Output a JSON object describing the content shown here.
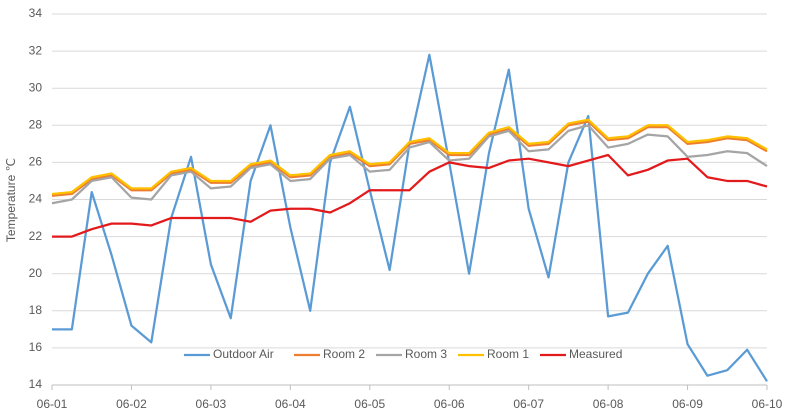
{
  "chart_data": {
    "type": "line",
    "y_label": "Temperature ℃",
    "x": [
      0,
      0.25,
      0.5,
      0.75,
      1,
      1.25,
      1.5,
      1.75,
      2,
      2.25,
      2.5,
      2.75,
      3,
      3.25,
      3.5,
      3.75,
      4,
      4.25,
      4.5,
      4.75,
      5,
      5.25,
      5.5,
      5.75,
      6,
      6.25,
      6.5,
      6.75,
      7,
      7.25,
      7.5,
      7.75,
      8,
      8.25,
      8.5,
      8.75,
      9
    ],
    "xlim": [
      0,
      9
    ],
    "xticks": [
      {
        "value": 0,
        "label": "06-01"
      },
      {
        "value": 1,
        "label": "06-02"
      },
      {
        "value": 2,
        "label": "06-03"
      },
      {
        "value": 3,
        "label": "06-04"
      },
      {
        "value": 4,
        "label": "06-05"
      },
      {
        "value": 5,
        "label": "06-06"
      },
      {
        "value": 6,
        "label": "06-07"
      },
      {
        "value": 7,
        "label": "06-08"
      },
      {
        "value": 8,
        "label": "06-09"
      },
      {
        "value": 9,
        "label": "06-10"
      }
    ],
    "ylim": [
      14,
      34
    ],
    "yticks": [
      14,
      16,
      18,
      20,
      22,
      24,
      26,
      28,
      30,
      32,
      34
    ],
    "grid": true,
    "legend": "bottom",
    "series": [
      {
        "name": "Outdoor Air",
        "color": "#5b9bd5",
        "values": [
          17.0,
          17.0,
          24.4,
          21.0,
          17.2,
          16.3,
          23.0,
          26.3,
          20.5,
          17.6,
          25.0,
          28.0,
          22.5,
          18.0,
          26.0,
          29.0,
          24.5,
          20.2,
          27.0,
          31.8,
          26.0,
          20.0,
          26.5,
          31.0,
          23.5,
          19.8,
          26.0,
          28.5,
          17.7,
          17.9,
          20.0,
          21.5,
          16.2,
          14.5,
          14.8,
          15.9,
          14.2
        ]
      },
      {
        "name": "Room 2",
        "color": "#ed7d31",
        "values": [
          24.2,
          24.3,
          25.1,
          25.3,
          24.5,
          24.5,
          25.4,
          25.6,
          24.9,
          24.9,
          25.8,
          26.0,
          25.2,
          25.3,
          26.3,
          26.5,
          25.8,
          25.9,
          27.0,
          27.2,
          26.4,
          26.4,
          27.5,
          27.8,
          26.9,
          27.0,
          28.0,
          28.2,
          27.2,
          27.3,
          27.9,
          27.9,
          27.0,
          27.1,
          27.3,
          27.2,
          26.6
        ]
      },
      {
        "name": "Room 3",
        "color": "#a5a5a5",
        "values": [
          23.8,
          24.0,
          25.0,
          25.2,
          24.1,
          24.0,
          25.3,
          25.5,
          24.6,
          24.7,
          25.7,
          25.9,
          25.0,
          25.1,
          26.2,
          26.4,
          25.5,
          25.6,
          26.8,
          27.1,
          26.1,
          26.2,
          27.4,
          27.7,
          26.6,
          26.7,
          27.7,
          28.0,
          26.8,
          27.0,
          27.5,
          27.4,
          26.3,
          26.4,
          26.6,
          26.5,
          25.8
        ]
      },
      {
        "name": "Room 1",
        "color": "#ffc000",
        "values": [
          24.3,
          24.4,
          25.2,
          25.4,
          24.6,
          24.6,
          25.5,
          25.7,
          25.0,
          25.0,
          25.9,
          26.1,
          25.3,
          25.4,
          26.4,
          26.6,
          25.9,
          26.0,
          27.1,
          27.3,
          26.5,
          26.5,
          27.6,
          27.9,
          27.0,
          27.1,
          28.1,
          28.3,
          27.3,
          27.4,
          28.0,
          28.0,
          27.1,
          27.2,
          27.4,
          27.3,
          26.7
        ]
      },
      {
        "name": "Measured",
        "color": "#e31a1c",
        "values": [
          22.0,
          22.0,
          22.4,
          22.7,
          22.7,
          22.6,
          23.0,
          23.0,
          23.0,
          23.0,
          22.8,
          23.4,
          23.5,
          23.5,
          23.3,
          23.8,
          24.5,
          24.5,
          24.5,
          25.5,
          26.0,
          25.8,
          25.7,
          26.1,
          26.2,
          26.0,
          25.8,
          26.1,
          26.4,
          25.3,
          25.6,
          26.1,
          26.2,
          25.2,
          25.0,
          25.0,
          24.7
        ]
      }
    ]
  }
}
